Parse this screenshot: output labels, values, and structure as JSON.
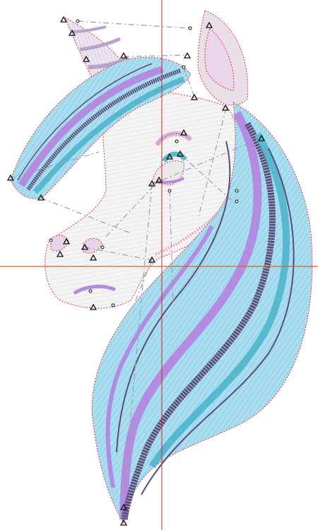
{
  "canvas": {
    "design": "unicorn-head-embroidery",
    "colors": {
      "mane_light_blue": "#8fd3ea",
      "mane_teal": "#56b9cf",
      "mane_lavender": "#b38be0",
      "mane_purple": "#7e5fd0",
      "mane_dark_plum": "#5b4c78",
      "horn_fill": "#e6dcea",
      "horn_stripe": "#b9a2cc",
      "ear_inner": "#ead6ea",
      "outline_red": "#e03030",
      "guide_h": "#d2691e",
      "guide_v": "#cc2222",
      "connector_gray": "#9aa0aa",
      "node_black": "#111111"
    },
    "guides": {
      "horizontal": "horizontal-guide",
      "vertical": "vertical-guide"
    }
  }
}
